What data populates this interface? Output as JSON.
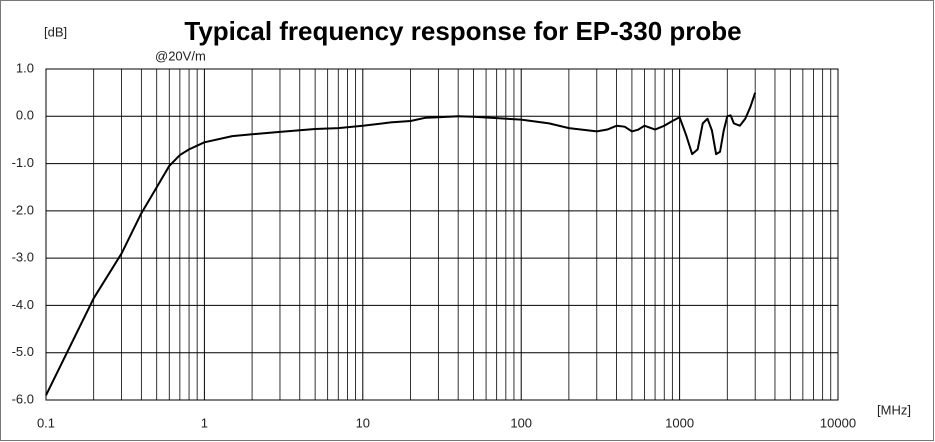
{
  "chart_data": {
    "type": "line",
    "title": "Typical frequency response for EP-330 probe",
    "subtitle": "@20V/m",
    "y_label": "[dB]",
    "x_label": "[MHz]",
    "xscale": "log",
    "grid": true,
    "xlim": [
      0.1,
      10000
    ],
    "xticks": [
      0.1,
      1,
      10,
      100,
      1000,
      10000
    ],
    "ylim": [
      -6,
      1
    ],
    "yticks": [
      {
        "value": -6,
        "label": "-6.0"
      },
      {
        "value": -5,
        "label": "-5.0"
      },
      {
        "value": -4,
        "label": "-4.0"
      },
      {
        "value": -3,
        "label": "-3.0"
      },
      {
        "value": -2,
        "label": "-2.0"
      },
      {
        "value": -1,
        "label": "-1.0"
      },
      {
        "value": 0,
        "label": "0.0"
      },
      {
        "value": 1,
        "label": "1.0"
      }
    ],
    "x": [
      0.1,
      0.2,
      0.3,
      0.4,
      0.5,
      0.6,
      0.7,
      0.8,
      1,
      1.5,
      2,
      3,
      5,
      7,
      10,
      15,
      20,
      25,
      30,
      40,
      50,
      70,
      100,
      150,
      200,
      300,
      350,
      400,
      450,
      500,
      550,
      600,
      700,
      800,
      900,
      1000,
      1100,
      1200,
      1300,
      1400,
      1500,
      1600,
      1700,
      1800,
      1900,
      2000,
      2100,
      2200,
      2400,
      2600,
      2800,
      3000
    ],
    "series": [
      {
        "color": "#000000",
        "values": [
          -5.9,
          -3.85,
          -2.9,
          -2.05,
          -1.5,
          -1.05,
          -0.82,
          -0.7,
          -0.55,
          -0.42,
          -0.38,
          -0.33,
          -0.27,
          -0.25,
          -0.2,
          -0.13,
          -0.1,
          -0.03,
          -0.02,
          0.0,
          -0.01,
          -0.04,
          -0.07,
          -0.15,
          -0.25,
          -0.32,
          -0.28,
          -0.2,
          -0.22,
          -0.32,
          -0.28,
          -0.2,
          -0.28,
          -0.2,
          -0.1,
          -0.02,
          -0.4,
          -0.8,
          -0.7,
          -0.15,
          -0.05,
          -0.3,
          -0.8,
          -0.75,
          -0.3,
          0.0,
          0.02,
          -0.15,
          -0.2,
          -0.05,
          0.2,
          0.5
        ]
      }
    ]
  }
}
